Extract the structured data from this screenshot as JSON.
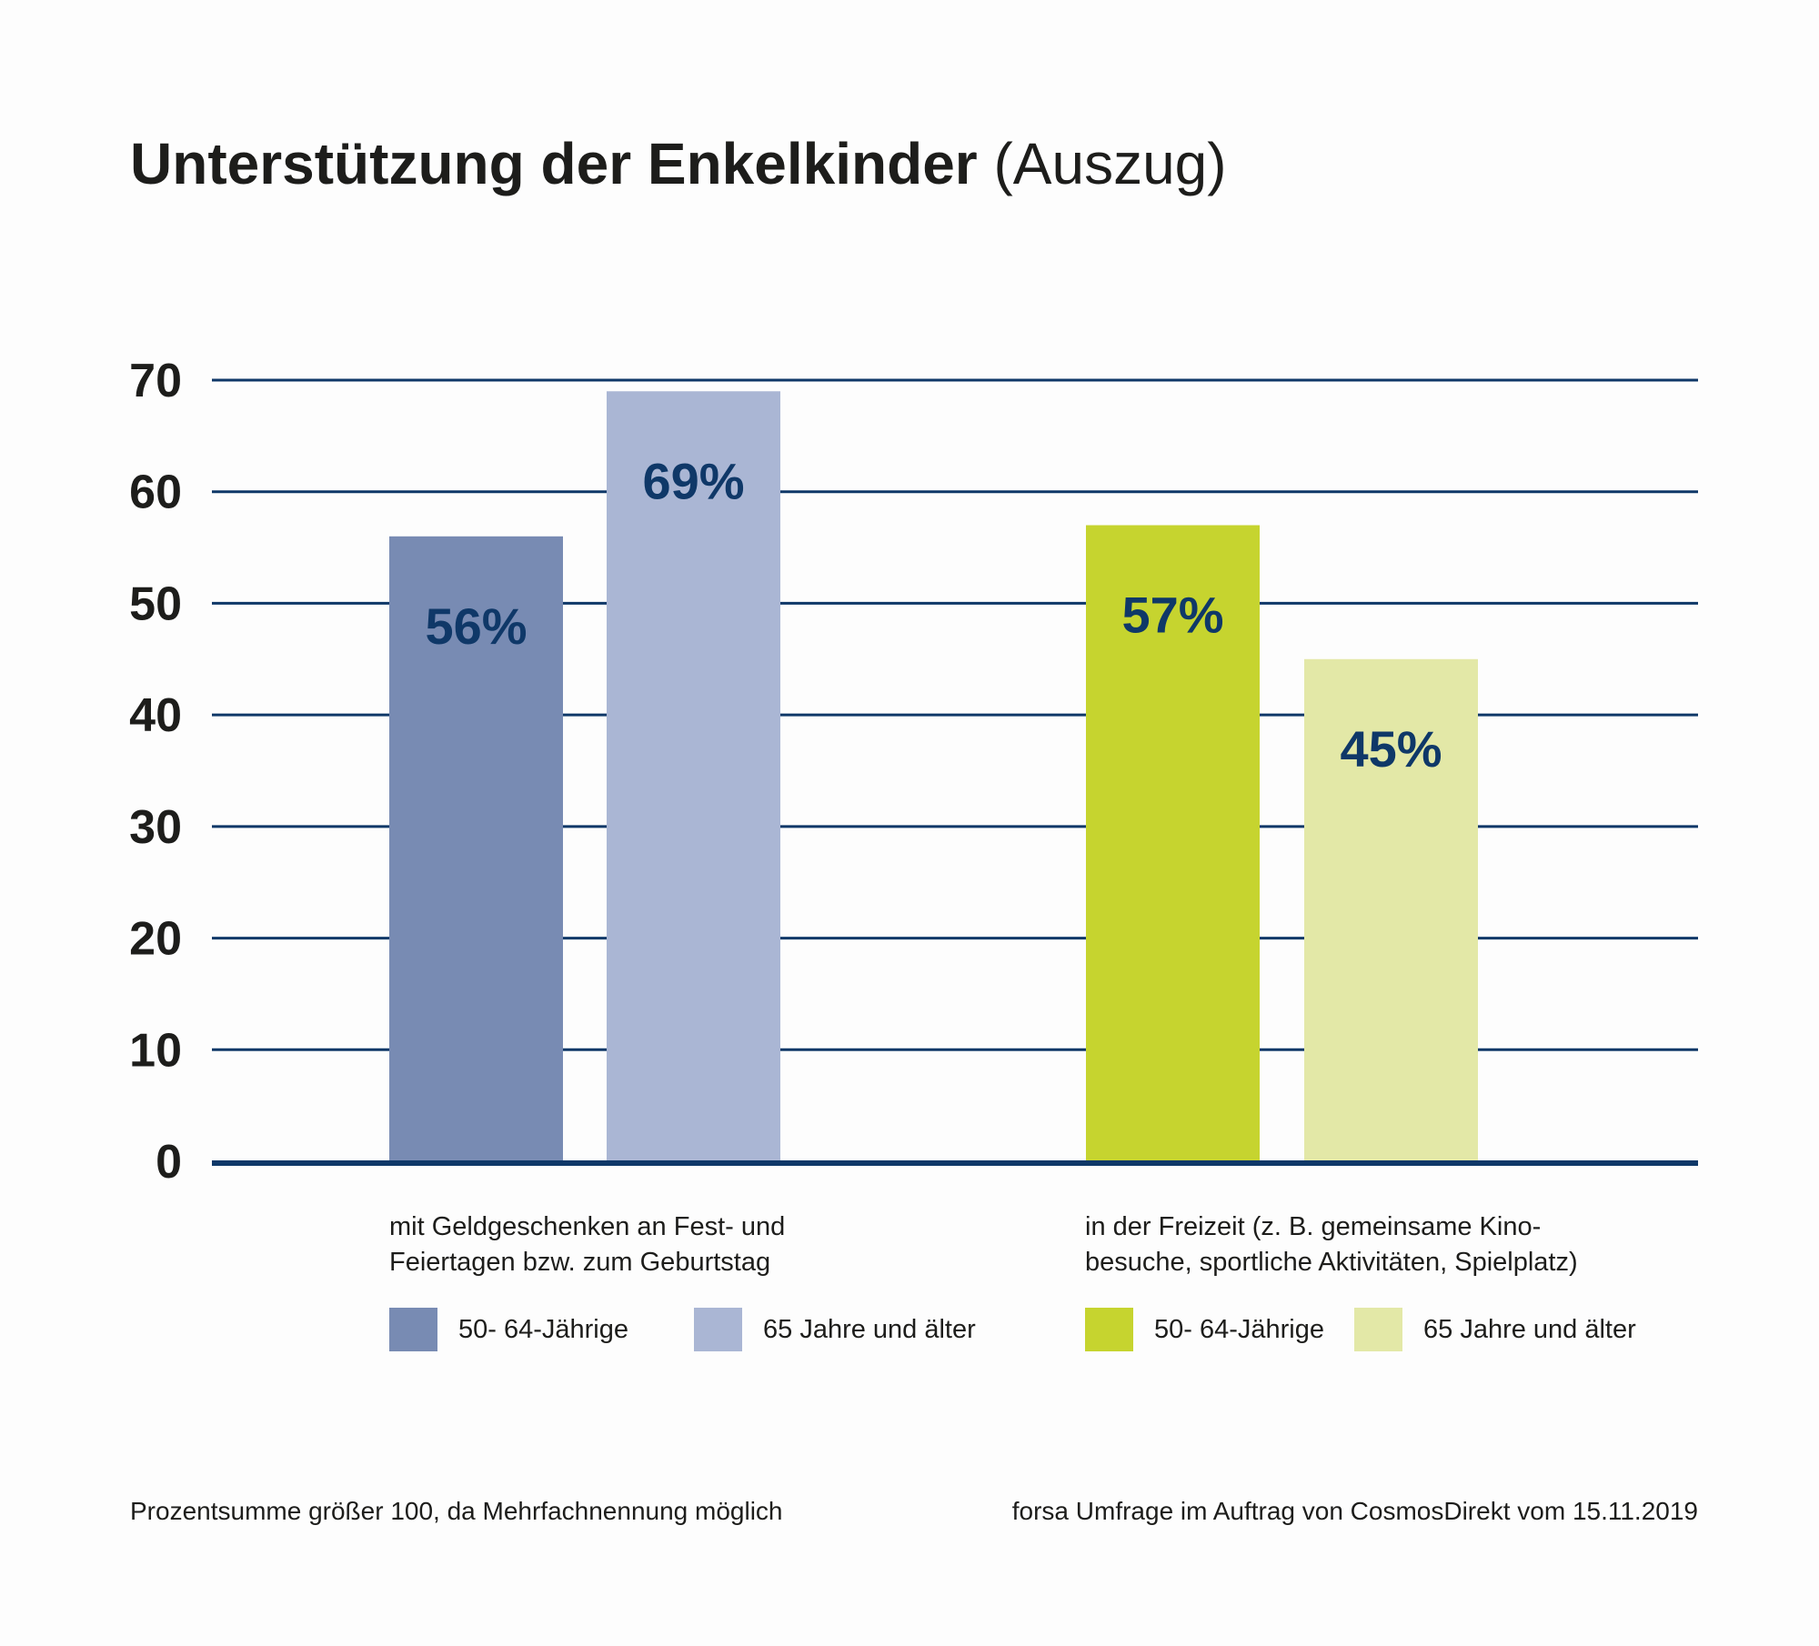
{
  "title": {
    "main": "Unterstützung der Enkelkinder",
    "suffix": "(Auszug)"
  },
  "colors": {
    "gridline": "#0f3868",
    "value_label": "#0f3868",
    "blue_dark": "#788bb3",
    "blue_light": "#aab6d4",
    "green_dark": "#c6d42f",
    "green_light": "#e3e8a7"
  },
  "chart_data": {
    "type": "bar",
    "categories": [
      "mit Geldgeschenken an Fest- und Feiertagen bzw. zum Geburtstag",
      "in der Freizeit (z. B. gemeinsame Kinobesuche, sportliche Aktivitäten, Spielplatz)"
    ],
    "ylim": [
      0,
      70
    ],
    "yticks": [
      0,
      10,
      20,
      30,
      40,
      50,
      60,
      70
    ],
    "grid": true,
    "bars": [
      {
        "category": 0,
        "series": "50- 64-Jährige",
        "value": 56,
        "label": "56%",
        "color": "#788bb3"
      },
      {
        "category": 0,
        "series": "65 Jahre und älter",
        "value": 69,
        "label": "69%",
        "color": "#aab6d4"
      },
      {
        "category": 1,
        "series": "50- 64-Jährige",
        "value": 57,
        "label": "57%",
        "color": "#c6d42f"
      },
      {
        "category": 1,
        "series": "65 Jahre und älter",
        "value": 45,
        "label": "45%",
        "color": "#e3e8a7"
      }
    ]
  },
  "category_labels": [
    {
      "line1": "mit Geldgeschenken an Fest- und",
      "line2": "Feiertagen bzw. zum Geburtstag"
    },
    {
      "line1": "in der Freizeit (z. B. gemeinsame Kino-",
      "line2": "besuche, sportliche Aktivitäten, Spielplatz)"
    }
  ],
  "legend": [
    {
      "label": "50- 64-Jährige",
      "color": "#788bb3"
    },
    {
      "label": "65 Jahre und älter",
      "color": "#aab6d4"
    },
    {
      "label": "50- 64-Jährige",
      "color": "#c6d42f"
    },
    {
      "label": "65 Jahre und älter",
      "color": "#e3e8a7"
    }
  ],
  "footnotes": {
    "left": "Prozentsumme größer 100, da Mehrfachnennung möglich",
    "right": "forsa Umfrage im Auftrag von CosmosDirekt vom 15.11.2019"
  }
}
